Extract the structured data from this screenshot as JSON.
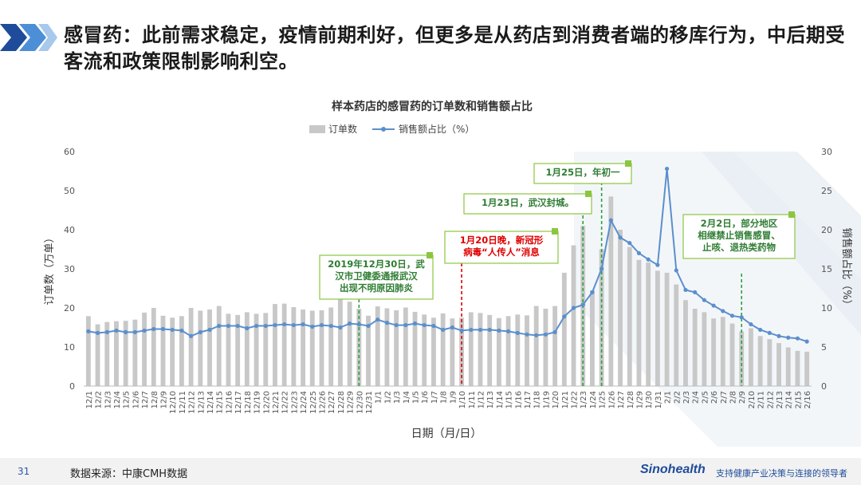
{
  "headline": "感冒药：此前需求稳定，疫情前期利好，但更多是从药店到消费者端的移库行为，中后期受客流和政策限制影响利空。",
  "footer": {
    "page_number": "31",
    "source": "数据来源：中康CMH数据",
    "brand": "Sinohealth",
    "slogan": "支持健康产业决策与连接的领导者"
  },
  "colors": {
    "bar": "#c8c8c8",
    "line": "#5b8fcc",
    "note_border": "#8cc63f",
    "note_text": "#2e7d32",
    "note_text_red": "#e00000"
  },
  "chart_data": {
    "type": "bar",
    "title": "样本药店的感冒药的订单数和销售额占比",
    "xlabel": "日期（月/日）",
    "ylabel": "订单数（万单）",
    "y2label": "销售额占比（%）",
    "ylim": [
      0,
      60
    ],
    "y2lim": [
      0,
      30
    ],
    "yticks": [
      0,
      10,
      20,
      30,
      40,
      50,
      60
    ],
    "y2ticks": [
      0,
      5,
      10,
      15,
      20,
      25,
      30
    ],
    "legend": {
      "position": "top-center"
    },
    "categories": [
      "12/1",
      "12/2",
      "12/3",
      "12/4",
      "12/5",
      "12/6",
      "12/7",
      "12/8",
      "12/9",
      "12/10",
      "12/11",
      "12/12",
      "12/13",
      "12/14",
      "12/15",
      "12/16",
      "12/17",
      "12/18",
      "12/19",
      "12/20",
      "12/21",
      "12/22",
      "12/23",
      "12/24",
      "12/25",
      "12/26",
      "12/27",
      "12/28",
      "12/29",
      "12/30",
      "12/31",
      "1/1",
      "1/2",
      "1/3",
      "1/4",
      "1/5",
      "1/6",
      "1/7",
      "1/8",
      "1/9",
      "1/10",
      "1/11",
      "1/12",
      "1/13",
      "1/14",
      "1/15",
      "1/16",
      "1/17",
      "1/18",
      "1/19",
      "1/20",
      "1/21",
      "1/22",
      "1/23",
      "1/24",
      "1/25",
      "1/26",
      "1/27",
      "1/28",
      "1/29",
      "1/30",
      "1/31",
      "2/1",
      "2/2",
      "2/3",
      "2/4",
      "2/5",
      "2/6",
      "2/7",
      "2/8",
      "2/9",
      "2/10",
      "2/11",
      "2/12",
      "2/13",
      "2/14",
      "2/15",
      "2/16"
    ],
    "series": [
      {
        "name": "订单数",
        "kind": "bar",
        "values": [
          17.9,
          15.8,
          16.4,
          16.6,
          16.7,
          17.0,
          18.8,
          20.0,
          18.0,
          17.5,
          17.9,
          20.0,
          19.3,
          19.6,
          20.5,
          18.5,
          18.2,
          18.9,
          18.5,
          18.7,
          21.0,
          21.1,
          20.2,
          19.6,
          19.3,
          19.4,
          20.1,
          23.0,
          21.6,
          19.8,
          18.0,
          20.4,
          19.9,
          19.4,
          20.1,
          19.0,
          18.3,
          17.5,
          18.6,
          17.3,
          17.5,
          18.9,
          18.7,
          18.2,
          17.4,
          17.9,
          18.3,
          18.1,
          20.5,
          19.8,
          20.5,
          29.0,
          36.0,
          41.0,
          24.5,
          35.0,
          48.5,
          40.0,
          35.6,
          32.3,
          31.6,
          29.5,
          29.0,
          26.0,
          22.0,
          19.8,
          18.9,
          17.3,
          17.7,
          16.0,
          14.0,
          14.8,
          12.8,
          12.0,
          11.0,
          9.9,
          9.0,
          8.8
        ]
      },
      {
        "name": "销售额占比（%）",
        "kind": "line",
        "axis": "right",
        "values": [
          7.0,
          6.8,
          6.9,
          7.1,
          6.9,
          6.9,
          7.1,
          7.3,
          7.3,
          7.2,
          7.1,
          6.4,
          6.9,
          7.2,
          7.7,
          7.7,
          7.7,
          7.4,
          7.7,
          7.7,
          7.8,
          7.9,
          7.8,
          7.9,
          7.6,
          7.8,
          7.7,
          7.5,
          8.0,
          7.9,
          7.7,
          8.5,
          8.1,
          7.8,
          7.8,
          8.0,
          7.8,
          7.7,
          7.2,
          7.5,
          7.1,
          7.2,
          7.2,
          7.2,
          7.1,
          7.0,
          6.8,
          6.6,
          6.5,
          6.6,
          6.9,
          8.9,
          10.0,
          10.4,
          12.0,
          15.0,
          21.2,
          19.0,
          18.3,
          17.0,
          16.2,
          15.5,
          27.8,
          14.8,
          12.3,
          12.0,
          11.0,
          10.3,
          9.6,
          9.0,
          8.8,
          7.9,
          7.2,
          6.8,
          6.4,
          6.2,
          6.1,
          5.7
        ]
      }
    ],
    "annotations": [
      {
        "text": [
          "2019年12月30日，武",
          "汉市卫健委通报武汉",
          "出现不明原因肺炎"
        ],
        "date": "12/30",
        "color": "green"
      },
      {
        "text": [
          "1月20日晚，新冠形",
          "病毒“人传人”消息"
        ],
        "date": "1/10",
        "color": "red"
      },
      {
        "text": [
          "1月23日，武汉封城。"
        ],
        "date": "1/23",
        "color": "green"
      },
      {
        "text": [
          "1月25日，年初一"
        ],
        "date": "1/25",
        "color": "green"
      },
      {
        "text": [
          "2月2日，部分地区",
          "相继禁止销售感冒、",
          "止咳、退热类药物"
        ],
        "date": "2/9",
        "color": "green"
      }
    ]
  }
}
